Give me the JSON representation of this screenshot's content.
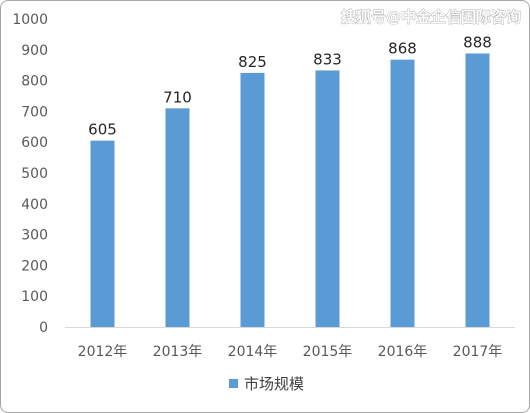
{
  "chart_data": {
    "type": "bar",
    "categories": [
      "2012年",
      "2013年",
      "2014年",
      "2015年",
      "2016年",
      "2017年"
    ],
    "series": [
      {
        "name": "市场规模",
        "values": [
          605,
          710,
          825,
          833,
          868,
          888
        ]
      }
    ],
    "ylim": [
      0,
      1000
    ],
    "yticks": [
      0,
      100,
      200,
      300,
      400,
      500,
      600,
      700,
      800,
      900,
      1000
    ],
    "grid": false,
    "legend_position": "bottom",
    "data_labels": true,
    "colors": {
      "bar": "#5b9bd5",
      "axis": "#d9d9d9"
    }
  },
  "watermark": "搜狐号@中金企信国际咨询"
}
